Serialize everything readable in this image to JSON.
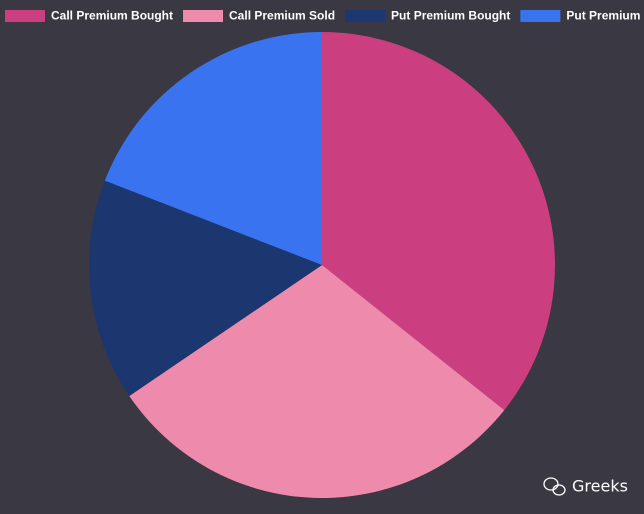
{
  "chart_data": {
    "type": "pie",
    "categories": [
      "Call Premium Bought",
      "Call Premium Sold",
      "Put Premium Bought",
      "Put Premium Sold"
    ],
    "values": [
      35.7,
      29.8,
      15.4,
      19.1
    ],
    "colors": [
      "#cb3f80",
      "#ee8aab",
      "#1c3670",
      "#3a73f0"
    ],
    "legend": "top",
    "watermark": "Greeks"
  }
}
